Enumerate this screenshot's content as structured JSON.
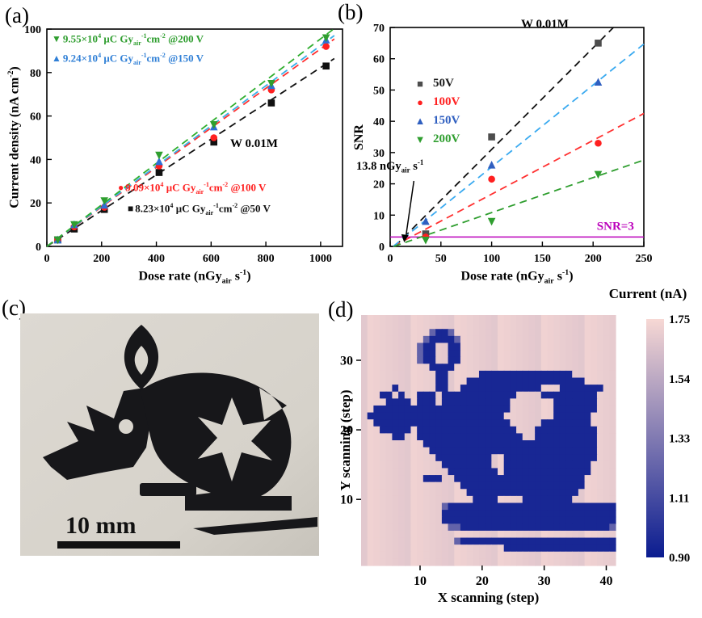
{
  "panels": {
    "a": {
      "label": "(a)"
    },
    "b": {
      "label": "(b)"
    },
    "c": {
      "label": "(c)",
      "scale_bar": "10 mm"
    },
    "d": {
      "label": "(d)"
    }
  },
  "chart_data": [
    {
      "panel": "a",
      "type": "scatter",
      "xlabel_html": "Dose rate (nGy<sub>air</sub> s<sup>-1</sup>)",
      "ylabel_html": "Current density (nA cm<sup>-2</sup>)",
      "xlim": [
        0,
        1080
      ],
      "xticks": [
        0,
        200,
        400,
        600,
        800,
        1000
      ],
      "ylim": [
        0,
        100
      ],
      "yticks": [
        0,
        20,
        40,
        60,
        80,
        100
      ],
      "line_xmax": 1050,
      "inplot_label": "W 0.01M",
      "x": [
        40,
        100,
        210,
        410,
        610,
        820,
        1020
      ],
      "series": [
        {
          "name": "50V",
          "marker": "square",
          "color": "#111111",
          "line_color": "#111111",
          "y": [
            3,
            8,
            17,
            34,
            48,
            66,
            83
          ],
          "fit": {
            "slope": 0.0823,
            "intercept": 0
          }
        },
        {
          "name": "100V",
          "marker": "circle",
          "color": "#ff2020",
          "line_color": "#ff3030",
          "y": [
            3,
            9,
            18,
            37,
            50,
            72,
            92
          ],
          "fit": {
            "slope": 0.0909,
            "intercept": 0
          }
        },
        {
          "name": "150V",
          "marker": "triangle-up",
          "color": "#2f6fd6",
          "line_color": "#39b0e8",
          "y": [
            3,
            10,
            19,
            39,
            55,
            74,
            95
          ],
          "fit": {
            "slope": 0.0924,
            "intercept": 0
          }
        },
        {
          "name": "200V",
          "marker": "triangle-down",
          "color": "#2f9e2f",
          "line_color": "#2fae2f",
          "y": [
            3,
            10,
            21,
            42,
            56,
            75,
            96
          ],
          "fit": {
            "slope": 0.0955,
            "intercept": 0
          }
        }
      ],
      "annotations": [
        {
          "marker": "▼",
          "color": "#2f9e2f",
          "html": "9.55×10<sup>4</sup> μC Gy<sub>air</sub><sup>-1</sup>cm<sup>-2</sup> @200 V",
          "pos": [
            64,
            40
          ]
        },
        {
          "marker": "▲",
          "color": "#2f7fd6",
          "html": "9.24×10<sup>4</sup> μC Gy<sub>air</sub><sup>-1</sup>cm<sup>-2</sup> @150 V",
          "pos": [
            64,
            64
          ]
        },
        {
          "marker": "●",
          "color": "#ff2020",
          "html": "9.09×10<sup>4</sup> μC Gy<sub>air</sub><sup>-1</sup>cm<sup>-2</sup> @100 V",
          "pos": [
            146,
            224
          ]
        },
        {
          "marker": "■",
          "color": "#111111",
          "html": "8.23×10<sup>4</sup> μC Gy<sub>air</sub><sup>-1</sup>cm<sup>-2</sup> @50 V",
          "pos": [
            158,
            250
          ]
        }
      ]
    },
    {
      "panel": "b",
      "type": "scatter",
      "xlabel_html": "Dose rate (nGy<sub>air</sub> s<sup>-1</sup>)",
      "ylabel": "SNR",
      "xlim": [
        0,
        250
      ],
      "xticks": [
        0,
        50,
        100,
        150,
        200,
        250
      ],
      "ylim": [
        0,
        70
      ],
      "yticks": [
        0,
        10,
        20,
        30,
        40,
        50,
        60,
        70
      ],
      "inplot_label": "W 0.01M",
      "x": [
        35,
        100,
        205
      ],
      "series": [
        {
          "name": "50V",
          "marker": "square",
          "color": "#4d4d4d",
          "label_color": "#1a1a1a",
          "line_color": "#111111",
          "y": [
            4,
            35,
            65
          ],
          "fit": {
            "slope": 0.325,
            "intercept": -1.5
          }
        },
        {
          "name": "100V",
          "marker": "circle",
          "color": "#ff2020",
          "label_color": "#ff2020",
          "line_color": "#ff3030",
          "y": [
            3,
            21.5,
            33
          ],
          "fit": {
            "slope": 0.172,
            "intercept": -0.5
          }
        },
        {
          "name": "150V",
          "marker": "triangle-up",
          "color": "#2f5fc0",
          "label_color": "#2f5fc0",
          "line_color": "#3aaaf0",
          "y": [
            8,
            26,
            52.5
          ],
          "fit": {
            "slope": 0.262,
            "intercept": -0.8
          }
        },
        {
          "name": "200V",
          "marker": "triangle-down",
          "color": "#2f9e2f",
          "label_color": "#2f9e2f",
          "line_color": "#2f9e2f",
          "y": [
            2,
            8,
            23
          ],
          "fit": {
            "slope": 0.112,
            "intercept": -0.4
          }
        }
      ],
      "threshold": {
        "value": 3,
        "label": "SNR=3",
        "color": "#bb00bb"
      },
      "detection_limit": {
        "text_html": "13.8 nGy<sub>air</sub> s<sup>-1</sup>",
        "x": 13.8
      }
    },
    {
      "panel": "d",
      "type": "heatmap",
      "colorbar_label": "Current (nA)",
      "xlabel": "X scanning (step)",
      "ylabel": "Y scanning (step)",
      "xticks": [
        10,
        20,
        30,
        40
      ],
      "yticks": [
        10,
        20,
        30
      ],
      "x_range": [
        1,
        41
      ],
      "y_range": [
        1,
        36
      ],
      "value_range": [
        0.9,
        1.75
      ],
      "colorbar_ticks": [
        1.75,
        1.54,
        1.33,
        1.11,
        0.9
      ],
      "colormap": {
        "low": "#0a1c90",
        "high": "#f7d8d4"
      },
      "level_map": {
        ".": 1.7,
        "o": 1.58,
        "+": 1.22,
        "#": 0.95
      },
      "rows": [
        [
          "..........",
          "..........",
          "..........",
          "..........."
        ],
        [
          "..........",
          "..........",
          "..........",
          "..........."
        ],
        [
          "..........",
          ".+##+.....",
          "..........",
          "..........."
        ],
        [
          "..........",
          "+####+....",
          "..........",
          "..........."
        ],
        [
          ".........+",
          "##..##....",
          "..........",
          "..........."
        ],
        [
          ".........+",
          "##..##....",
          "..........",
          "..........."
        ],
        [
          ".........+",
          "##..##....",
          "..........",
          "..........."
        ],
        [
          "..........",
          ".####.....",
          "..........",
          "..........."
        ],
        [
          "..........",
          "..##.....#",
          "##########",
          "####......."
        ],
        [
          "..........",
          "..##...###",
          "##########",
          "######....."
        ],
        [
          ".....#....",
          "..##..####",
          "#########.",
          "..#######.."
        ],
        [
          "...##.#..#",
          "##.#######",
          "#####....#",
          "########..."
        ],
        [
          "....####.#",
          "##.#######",
          "####......",
          ".#######..."
        ],
        [
          "..########",
          "##########",
          "####......",
          ".#######..."
        ],
        [
          ".#########",
          "##########",
          "###.......",
          ".######...."
        ],
        [
          "..########",
          "##########",
          "####.....#",
          "#######...."
        ],
        [
          "...#####.#",
          "##########",
          "#####...##",
          "########..."
        ],
        [
          ".....##..#",
          "##########",
          "######..##",
          "########..."
        ],
        [
          "..........",
          "##########",
          "##########",
          "########..."
        ],
        [
          "..........",
          ".#########",
          "##########",
          "########..."
        ],
        [
          "..........",
          "..########",
          "#..#######",
          "########..."
        ],
        [
          "..........",
          "...#######",
          "#..#######",
          "#######...."
        ],
        [
          "..........",
          "....######",
          "##.#######",
          "#######...."
        ],
        [
          "..........",
          "###..#####",
          "##########",
          "######....."
        ],
        [
          "..........",
          "......####",
          "##########",
          "######....."
        ],
        [
          "..........",
          ".......###",
          "##########",
          "#####......"
        ],
        [
          "..........",
          "........##",
          "##....####",
          "####......."
        ],
        [
          "..........",
          "...+######",
          "##########",
          "###########"
        ],
        [
          "..........",
          "...#######",
          "##########",
          "###########"
        ],
        [
          "..........",
          "...#######",
          "##########",
          "###########"
        ],
        [
          "..........",
          "....++####",
          "##########",
          "##########+"
        ],
        [
          "..........",
          "..........",
          "..........",
          "..........."
        ],
        [
          "..........",
          ".....+####",
          "##########",
          "###########"
        ],
        [
          "..........",
          "..........",
          "...#######",
          "###########"
        ],
        [
          "..........",
          "..........",
          "..........",
          "..........."
        ],
        [
          "..........",
          "..........",
          "..........",
          "..........."
        ]
      ]
    }
  ]
}
